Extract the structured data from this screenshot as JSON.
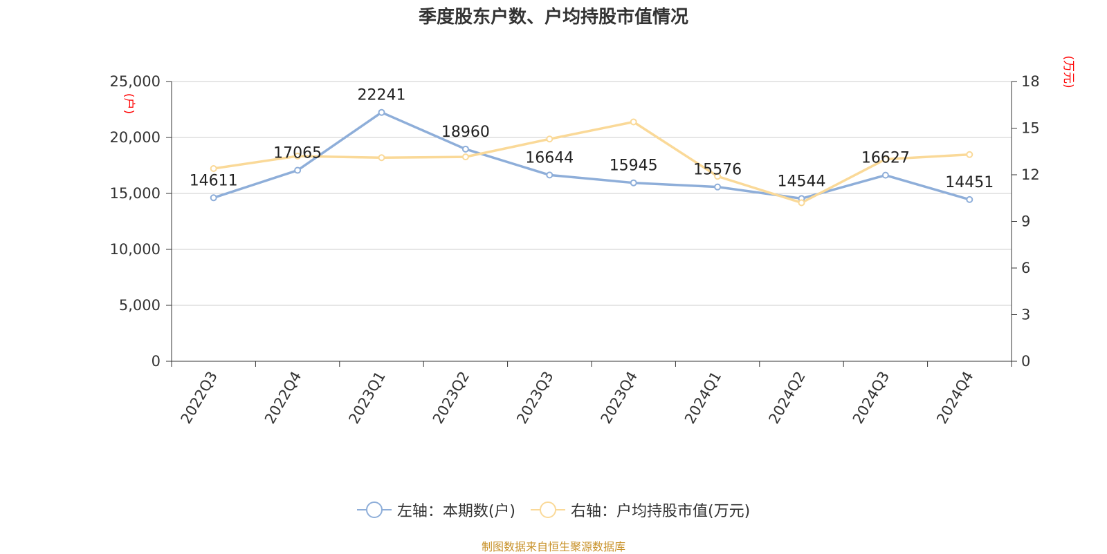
{
  "title": "季度股东户数、户均持股市值情况",
  "footer": "制图数据来自恒生聚源数据库",
  "colors": {
    "left_series": "#8eaed9",
    "right_series": "#fad998",
    "unit_label": "#ff0000",
    "axis": "#333333",
    "grid": "#cccccc"
  },
  "chart_data": {
    "type": "line",
    "categories": [
      "2022Q3",
      "2022Q4",
      "2023Q1",
      "2023Q2",
      "2023Q3",
      "2023Q4",
      "2024Q1",
      "2024Q2",
      "2024Q3",
      "2024Q4"
    ],
    "series": [
      {
        "name": "左轴：本期数(户)",
        "axis": "left",
        "values": [
          14611,
          17065,
          22241,
          18960,
          16644,
          15945,
          15576,
          14544,
          16627,
          14451
        ],
        "data_labels": [
          "14611",
          "17065",
          "22241",
          "18960",
          "16644",
          "15945",
          "15576",
          "14544",
          "16627",
          "14451"
        ]
      },
      {
        "name": "右轴：户均持股市值(万元)",
        "axis": "right",
        "values": [
          12.4,
          13.2,
          13.1,
          13.15,
          14.3,
          15.4,
          11.9,
          10.2,
          13.0,
          13.3
        ]
      }
    ],
    "left_axis": {
      "unit": "(户)",
      "ylim": [
        0,
        25000
      ],
      "ticks": [
        0,
        5000,
        10000,
        15000,
        20000,
        25000
      ],
      "tick_labels": [
        "0",
        "5,000",
        "10,000",
        "15,000",
        "20,000",
        "25,000"
      ]
    },
    "right_axis": {
      "unit": "(万元)",
      "ylim": [
        0,
        18
      ],
      "ticks": [
        0,
        3,
        6,
        9,
        12,
        15,
        18
      ],
      "tick_labels": [
        "0",
        "3",
        "6",
        "9",
        "12",
        "15",
        "18"
      ]
    },
    "grid": true,
    "legend_position": "bottom"
  }
}
